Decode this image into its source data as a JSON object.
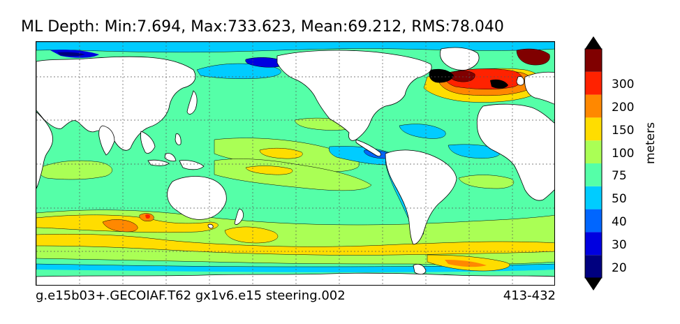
{
  "title": "ML Depth: Min:7.694, Max:733.623, Mean:69.212, RMS:78.040",
  "footer": {
    "run_name": "g.e15b03+.GECOIAF.T62 gx1v6.e15 steering.002",
    "years": "413-432"
  },
  "colorbar": {
    "units": "meters",
    "ticks": [
      "20",
      "30",
      "40",
      "50",
      "75",
      "100",
      "150",
      "200",
      "300"
    ],
    "colors": [
      "#00007f",
      "#0000e0",
      "#0066ff",
      "#00ccff",
      "#55ffa8",
      "#aaff55",
      "#ffdd00",
      "#ff8800",
      "#ff2200",
      "#800000"
    ]
  },
  "map": {
    "projection": "global lon-lat",
    "grid": true,
    "ocean_fill": "#55ffa8",
    "land_fill": "#ffffff"
  }
}
